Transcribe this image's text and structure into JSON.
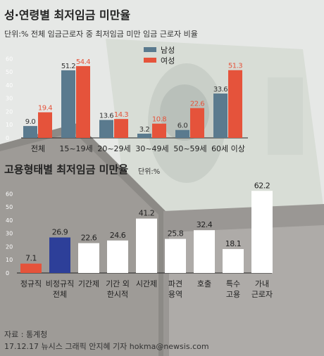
{
  "header": {
    "title": "성·연령별 최저임금 미만율",
    "subtitle": "단위:% 전체 임금근로자 중 최저임금 미만 임금 근로자 비율"
  },
  "colors": {
    "male": "#5a7a8e",
    "female": "#e5533b",
    "regular": "#e5533b",
    "nonregular": "#2d3f99",
    "other": "#ffffff",
    "dark": "#222222"
  },
  "chart_data": [
    {
      "type": "bar",
      "title": "성·연령별 최저임금 미만율",
      "subtitle": "단위:% 전체 임금근로자 중 최저임금 미만 임금 근로자 비율",
      "categories": [
        "전체",
        "15~19세",
        "20~29세",
        "30~49세",
        "50~59세",
        "60세 이상"
      ],
      "series": [
        {
          "name": "남성",
          "values": [
            9.0,
            51.2,
            13.6,
            3.2,
            6.0,
            33.6
          ]
        },
        {
          "name": "여성",
          "values": [
            19.4,
            54.4,
            14.3,
            10.8,
            22.6,
            51.3
          ]
        }
      ],
      "value_labels": {
        "남성": [
          "9.0",
          "51.2",
          "13.6",
          "3.2",
          "6.0",
          "33.6"
        ],
        "여성": [
          "19.4",
          "54.4",
          "14.3",
          "10.8",
          "22.6",
          "51.3"
        ]
      },
      "yticks": [
        "0",
        "10",
        "20",
        "30",
        "40",
        "50",
        "60"
      ],
      "ylim": [
        0,
        65
      ],
      "legend": "top-center"
    },
    {
      "type": "bar",
      "title": "고용형태별 최저임금 미만율",
      "unit": "단위:%",
      "categories": [
        "정규직",
        "비정규직 전체",
        "기간제",
        "기간 외 한시적",
        "시간제",
        "파견 용역",
        "호출",
        "특수 고용",
        "가내 근로자"
      ],
      "category_lines": [
        [
          "정규직"
        ],
        [
          "비정규직",
          "전체"
        ],
        [
          "기간제"
        ],
        [
          "기간 외",
          "한시적"
        ],
        [
          "시간제"
        ],
        [
          "파견",
          "용역"
        ],
        [
          "호출"
        ],
        [
          "특수",
          "고용"
        ],
        [
          "가내",
          "근로자"
        ]
      ],
      "values": [
        7.1,
        26.9,
        22.6,
        24.6,
        41.2,
        25.8,
        32.4,
        18.1,
        62.2
      ],
      "value_labels": [
        "7.1",
        "26.9",
        "22.6",
        "24.6",
        "41.2",
        "25.8",
        "32.4",
        "18.1",
        "62.2"
      ],
      "yticks": [
        "0",
        "10",
        "20",
        "30",
        "40",
        "50",
        "60"
      ],
      "ylim": [
        0,
        65
      ]
    }
  ],
  "footer": {
    "source": "자료 : 통계청",
    "credit": "17.12.17 뉴시스 그래픽 안지혜 기자 hokma@newsis.com"
  }
}
